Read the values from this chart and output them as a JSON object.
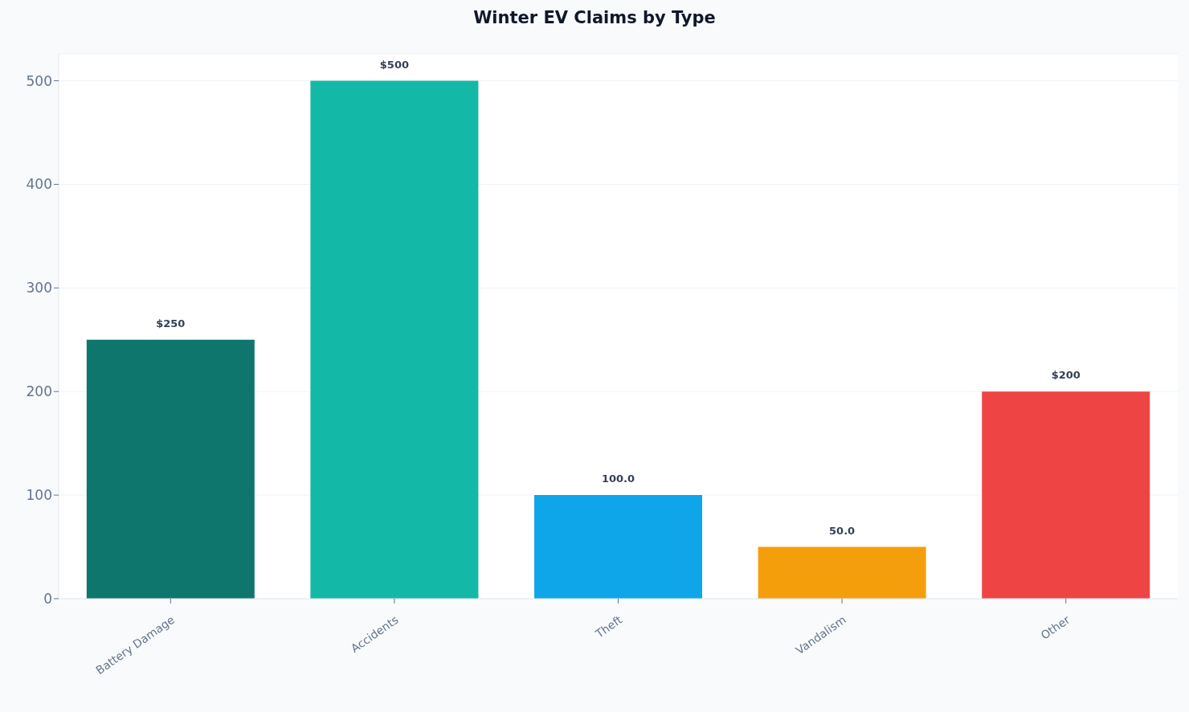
{
  "chart_data": {
    "type": "bar",
    "title": "Winter EV Claims by Type",
    "categories": [
      "Battery Damage",
      "Accidents",
      "Theft",
      "Vandalism",
      "Other"
    ],
    "values": [
      250,
      500,
      100,
      50,
      200
    ],
    "value_labels": [
      "$250",
      "$500",
      "100.0",
      "50.0",
      "$200"
    ],
    "colors": [
      "#0f766e",
      "#14b8a6",
      "#0ea5e9",
      "#f59e0b",
      "#ef4444"
    ],
    "ylim": [
      0,
      526
    ],
    "yticks": [
      0,
      100,
      200,
      300,
      400,
      500
    ],
    "grid": "y",
    "legend": false
  }
}
